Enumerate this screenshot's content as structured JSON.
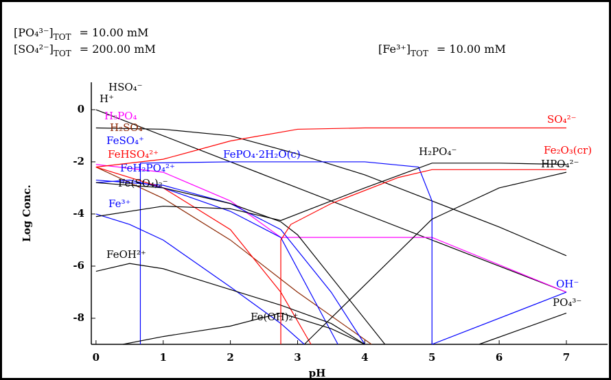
{
  "header": [
    {
      "species": "[PO₄³⁻]",
      "sub": "TOT",
      "text": "=  10.00 mM"
    },
    {
      "species": "[SO₄²⁻]",
      "sub": "TOT",
      "text": "= 200.00 mM"
    },
    {
      "species": "[Fe³⁺]",
      "sub": "TOT",
      "text": "=   10.00 mM"
    }
  ],
  "chart_data": {
    "type": "line",
    "xlabel": "pH",
    "ylabel": "Log Conc.",
    "xlim": [
      -0.07,
      7
    ],
    "ylim": [
      -9,
      1.05
    ],
    "xticks": [
      0,
      1,
      2,
      3,
      4,
      5,
      6,
      7
    ],
    "yticks": [
      0,
      -2,
      -4,
      -6,
      -8
    ],
    "series": [
      {
        "name": "H⁺",
        "color": "#000000",
        "x": [
          0,
          7
        ],
        "values": [
          0,
          -7
        ]
      },
      {
        "name": "HSO₄⁻",
        "color": "#000000",
        "x": [
          0,
          1,
          2,
          3,
          4,
          5,
          6,
          7
        ],
        "values": [
          -0.7,
          -0.75,
          -1.0,
          -1.7,
          -2.5,
          -3.5,
          -4.5,
          -5.6
        ]
      },
      {
        "name": "H₃PO₄",
        "color": "#ff00ff",
        "x": [
          0,
          1,
          2,
          2.75,
          5,
          7
        ],
        "values": [
          -2.1,
          -2.4,
          -3.5,
          -4.9,
          -4.9,
          -7.0
        ]
      },
      {
        "name": "H₂SO₄",
        "color": "#8b2500",
        "x": [
          0,
          1,
          2,
          3,
          4.1
        ],
        "values": [
          -2.2,
          -3.4,
          -5.0,
          -7.0,
          -9
        ]
      },
      {
        "name": "FeSO₄⁺",
        "color": "#0000ff",
        "x": [
          0,
          1,
          2,
          2.75,
          3.5,
          4
        ],
        "values": [
          -2.7,
          -2.9,
          -3.6,
          -4.6,
          -7,
          -9
        ]
      },
      {
        "name": "FeHSO₄²⁺",
        "color": "#ff0000",
        "x": [
          0,
          1,
          2,
          2.75,
          3.2
        ],
        "values": [
          -2.2,
          -3.0,
          -4.6,
          -7.0,
          -9
        ]
      },
      {
        "name": "FePO₄·2H₂O(c)",
        "color": "#0000ff",
        "x": [
          0.66,
          0.66,
          2,
          4,
          4.8,
          5.0,
          5.0
        ],
        "values": [
          -9,
          -2.05,
          -2.0,
          -2.0,
          -2.2,
          -3.5,
          -9
        ]
      },
      {
        "name": "FeH₂PO₄²⁺",
        "color": "#0000ff",
        "x": [
          0,
          0.5,
          1,
          2,
          2.75,
          3.6
        ],
        "values": [
          -2.8,
          -2.7,
          -3.0,
          -3.9,
          -4.9,
          -9
        ]
      },
      {
        "name": "Fe(SO₄)₂⁻",
        "color": "#000000",
        "x": [
          0,
          1,
          2,
          2.75,
          3,
          4.3
        ],
        "values": [
          -2.8,
          -3.0,
          -3.6,
          -4.3,
          -4.8,
          -9
        ]
      },
      {
        "name": "Fe³⁺",
        "color": "#0000ff",
        "x": [
          0,
          0.5,
          1,
          2,
          2.75,
          3.1
        ],
        "values": [
          -4.0,
          -4.4,
          -5.0,
          -6.8,
          -8.2,
          -9
        ]
      },
      {
        "name": "FeOH²⁺",
        "color": "#000000",
        "x": [
          0,
          0.5,
          1,
          2,
          2.75,
          3.5,
          4
        ],
        "values": [
          -6.2,
          -5.9,
          -6.1,
          -6.9,
          -7.5,
          -8.2,
          -9
        ]
      },
      {
        "name": "Fe(OH)₂⁺",
        "color": "#000000",
        "x": [
          0.4,
          1,
          2,
          2.75,
          3.5,
          4.0
        ],
        "values": [
          -9,
          -8.7,
          -8.3,
          -7.8,
          -8.4,
          -9
        ]
      },
      {
        "name": "SO₄²⁻",
        "color": "#ff0000",
        "x": [
          0,
          1,
          2,
          3,
          4,
          7
        ],
        "values": [
          -2.2,
          -1.9,
          -1.2,
          -0.75,
          -0.7,
          -0.7
        ]
      },
      {
        "name": "H₂PO₄⁻",
        "color": "#000000",
        "x": [
          0,
          1,
          2,
          2.75,
          4,
          5,
          6,
          7
        ],
        "values": [
          -4.1,
          -3.7,
          -3.8,
          -4.25,
          -3,
          -2.05,
          -2.05,
          -2.1
        ]
      },
      {
        "name": "Fe₂O₃(cr)",
        "color": "#ff0000",
        "x": [
          2.75,
          2.75,
          2.9,
          3.5,
          4.5,
          5,
          7
        ],
        "values": [
          -9,
          -5.0,
          -4.4,
          -3.6,
          -2.6,
          -2.3,
          -2.3
        ]
      },
      {
        "name": "HPO₄²⁻",
        "color": "#000000",
        "x": [
          3.1,
          5,
          6,
          7
        ],
        "values": [
          -9,
          -4.2,
          -3.0,
          -2.4
        ]
      },
      {
        "name": "OH⁻",
        "color": "#0000ff",
        "x": [
          5,
          7
        ],
        "values": [
          -9,
          -7
        ]
      },
      {
        "name": "PO₄³⁻",
        "color": "#000000",
        "x": [
          5.7,
          7
        ],
        "values": [
          -9,
          -7.8
        ]
      }
    ]
  }
}
